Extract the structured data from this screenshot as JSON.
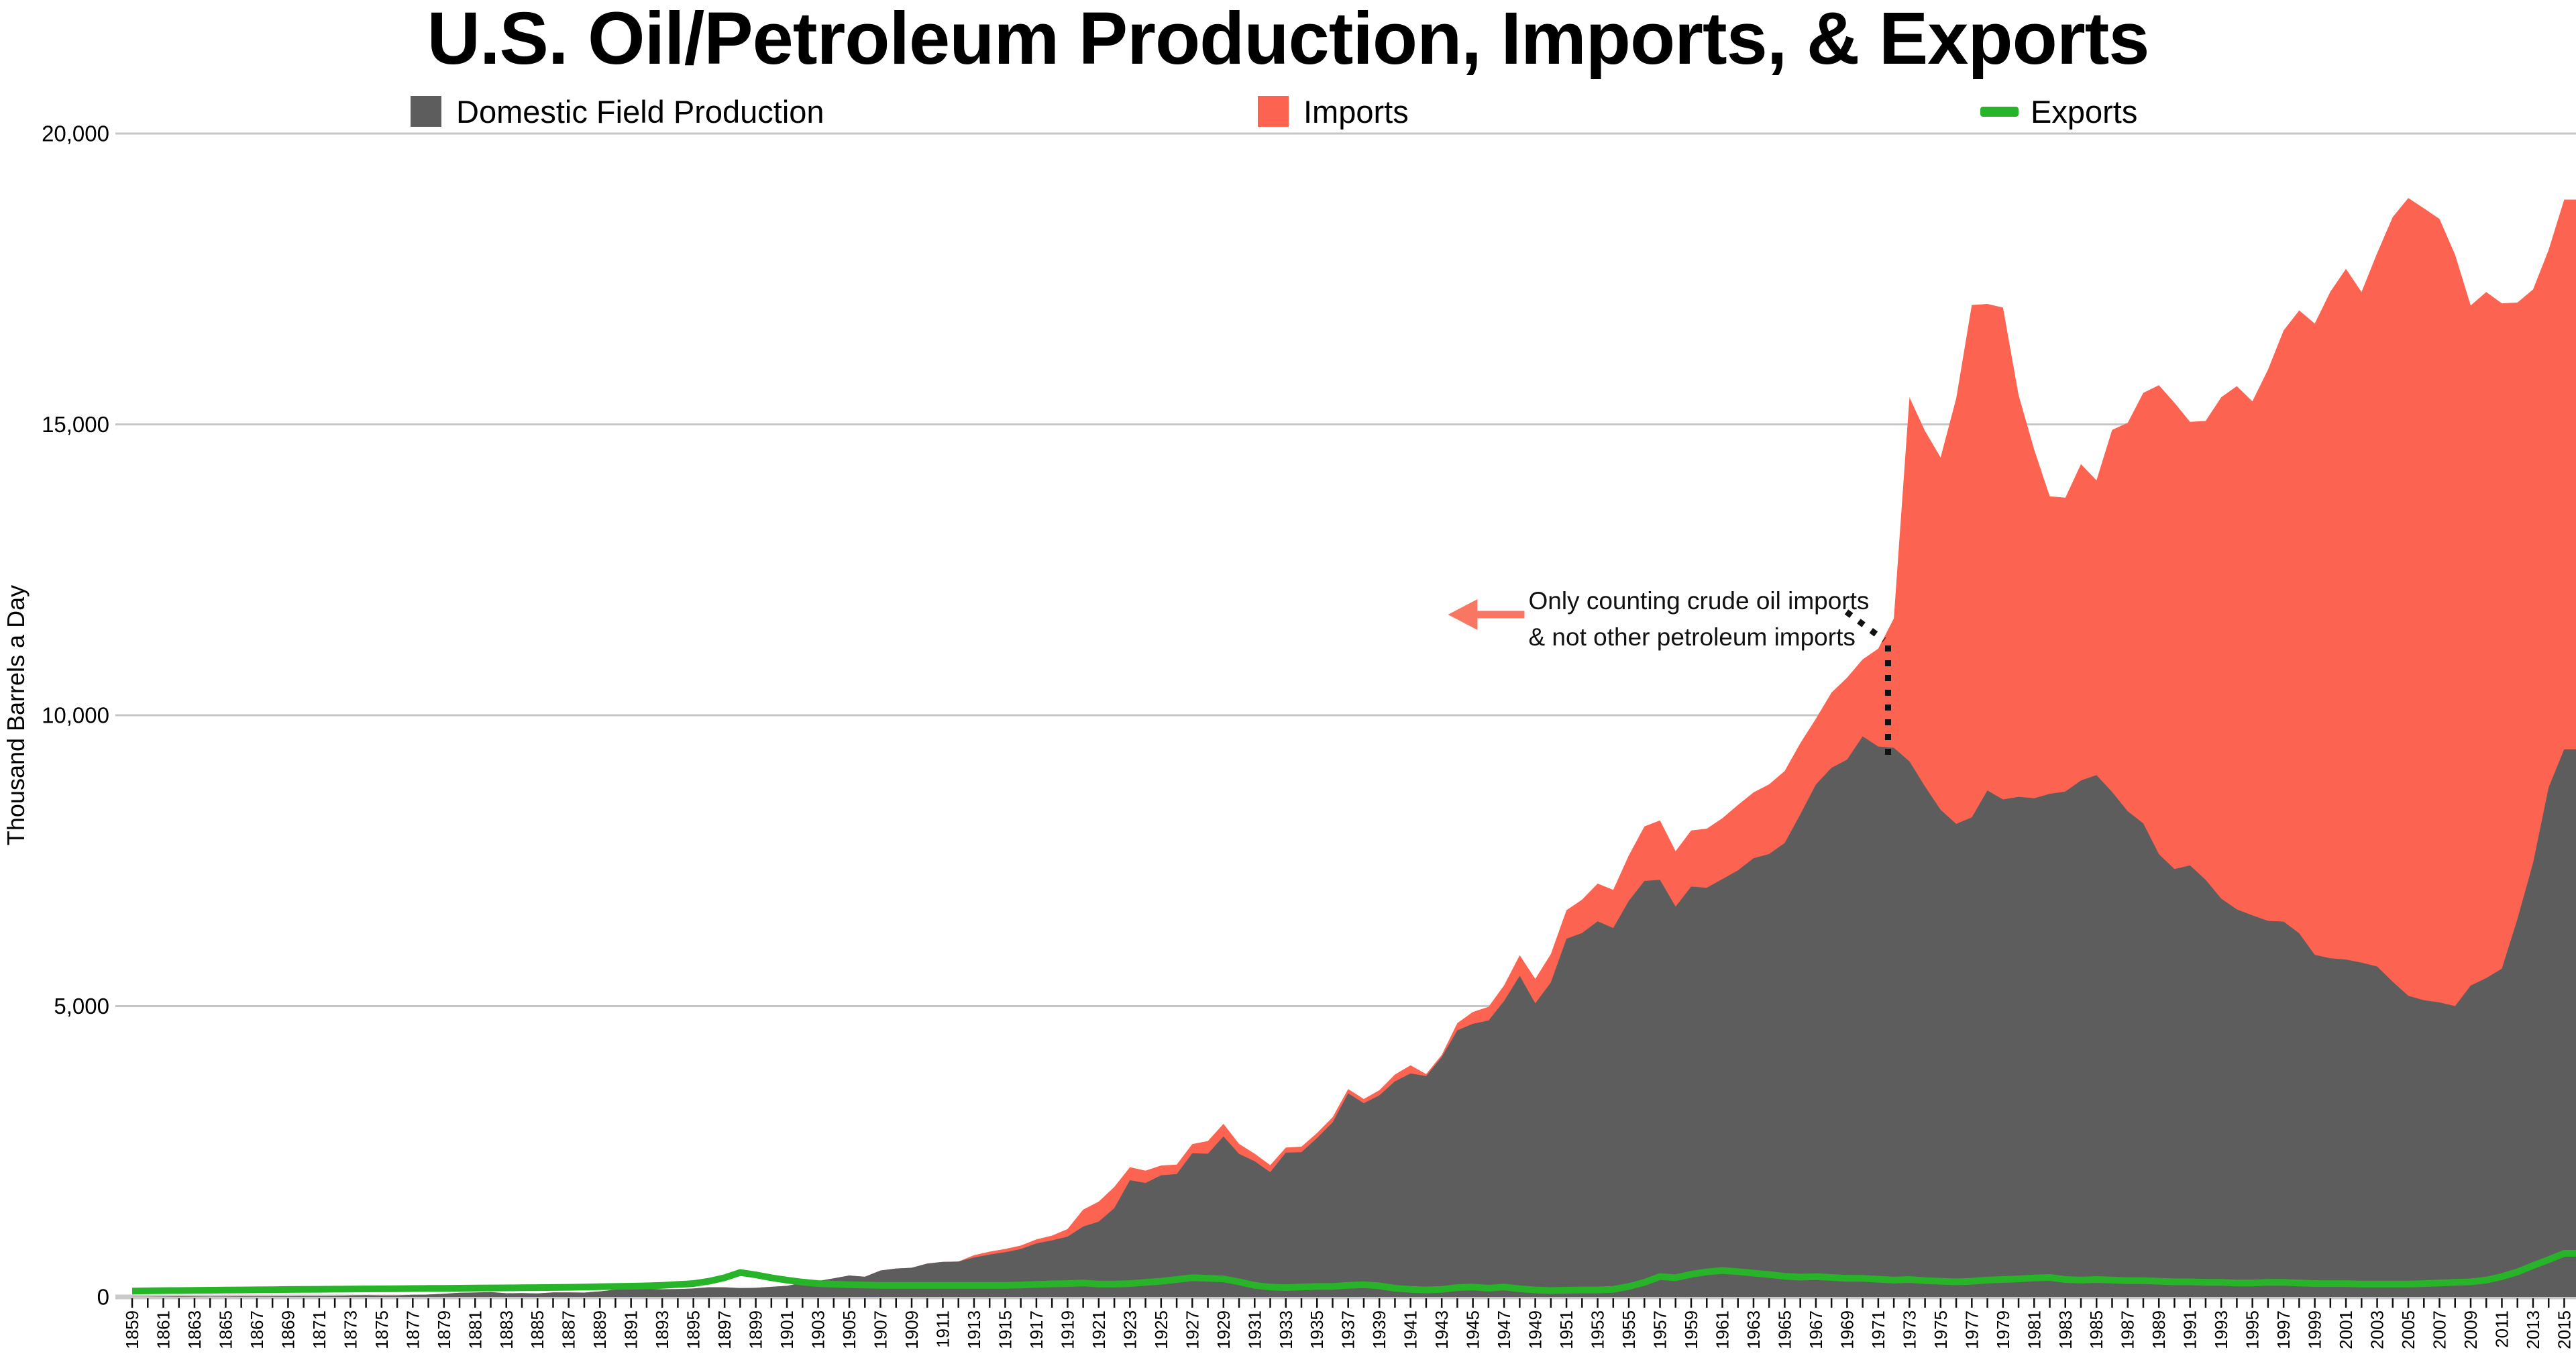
{
  "chart_data": {
    "type": "area",
    "title": "U.S. Oil/Petroleum Production, Imports, & Exports",
    "ylabel": "Thousand Barrels a Day",
    "ylim": [
      0,
      20000
    ],
    "y_tick_labels": [
      "0",
      "5,000",
      "10,000",
      "15,000",
      "20,000"
    ],
    "y_tick_values": [
      0,
      5000,
      10000,
      15000,
      20000
    ],
    "x_year_start": 1859,
    "x_year_end": 2015,
    "x_tick_labels": [
      1859,
      1861,
      1863,
      1865,
      1867,
      1869,
      1871,
      1873,
      1875,
      1877,
      1879,
      1881,
      1883,
      1885,
      1887,
      1889,
      1891,
      1893,
      1895,
      1897,
      1899,
      1901,
      1903,
      1905,
      1907,
      1909,
      1911,
      1913,
      1915,
      1917,
      1919,
      1921,
      1923,
      1925,
      1927,
      1929,
      1931,
      1933,
      1935,
      1937,
      1939,
      1941,
      1943,
      1945,
      1947,
      1949,
      1951,
      1953,
      1955,
      1957,
      1959,
      1961,
      1963,
      1965,
      1967,
      1969,
      1971,
      1973,
      1975,
      1977,
      1979,
      1981,
      1983,
      1985,
      1987,
      1989,
      1991,
      1993,
      1995,
      1997,
      1999,
      2001,
      2003,
      2005,
      2007,
      2009,
      2011,
      2013,
      2015
    ],
    "stacked": true,
    "grid": "horizontal",
    "legend_position": "top",
    "background": "#ffffff",
    "gridline_color": "#c6c6c6",
    "axis_line_color": "#c9c9c9",
    "series": [
      {
        "name": "Domestic Field Production",
        "type": "area",
        "color": "#5D5D5D",
        "values": [
          1,
          1,
          6,
          8,
          7,
          6,
          7,
          10,
          9,
          10,
          12,
          14,
          14,
          17,
          27,
          30,
          24,
          25,
          37,
          42,
          54,
          72,
          76,
          83,
          64,
          66,
          60,
          77,
          77,
          75,
          96,
          126,
          149,
          138,
          133,
          135,
          145,
          167,
          166,
          152,
          157,
          174,
          190,
          243,
          275,
          320,
          369,
          347,
          455,
          489,
          502,
          574,
          603,
          609,
          678,
          728,
          770,
          823,
          919,
          974,
          1037,
          1210,
          1294,
          1527,
          2007,
          1960,
          2092,
          2112,
          2469,
          2463,
          2760,
          2460,
          2332,
          2145,
          2481,
          2488,
          2730,
          3001,
          3500,
          3330,
          3466,
          3707,
          3842,
          3796,
          4125,
          4584,
          4695,
          4751,
          5088,
          5520,
          5046,
          5407,
          6158,
          6256,
          6458,
          6342,
          6807,
          7151,
          7170,
          6710,
          7054,
          7035,
          7183,
          7332,
          7542,
          7614,
          7804,
          8295,
          8810,
          9096,
          9238,
          9637,
          9463,
          9441,
          9208,
          8774,
          8375,
          8132,
          8245,
          8707,
          8552,
          8597,
          8572,
          8649,
          8688,
          8879,
          8971,
          8680,
          8349,
          8140,
          7613,
          7355,
          7417,
          7171,
          6847,
          6662,
          6560,
          6465,
          6452,
          6252,
          5881,
          5822,
          5801,
          5746,
          5681,
          5419,
          5178,
          5102,
          5064,
          5000,
          5353,
          5482,
          5645,
          6497,
          7461,
          8759,
          9415
        ]
      },
      {
        "name": "Imports",
        "type": "area",
        "color": "#FC6351",
        "stacked_on": "Domestic Field Production",
        "values": [
          0,
          0,
          0,
          0,
          0,
          0,
          0,
          0,
          0,
          0,
          0,
          0,
          0,
          0,
          0,
          0,
          0,
          0,
          0,
          0,
          0,
          0,
          0,
          0,
          0,
          0,
          0,
          0,
          0,
          0,
          0,
          0,
          0,
          0,
          0,
          0,
          0,
          0,
          0,
          0,
          0,
          0,
          0,
          0,
          0,
          0,
          0,
          0,
          0,
          0,
          0,
          0,
          0,
          0,
          40,
          50,
          55,
          60,
          70,
          80,
          130,
          291,
          345,
          365,
          224,
          211,
          168,
          164,
          160,
          218,
          216,
          171,
          130,
          122,
          87,
          96,
          88,
          89,
          74,
          72,
          88,
          117,
          139,
          35,
          37,
          123,
          203,
          236,
          268,
          353,
          421,
          487,
          490,
          573,
          648,
          656,
          782,
          937,
          1022,
          953,
          964,
          1015,
          1047,
          1126,
          1132,
          1198,
          1238,
          1225,
          1129,
          1293,
          1408,
          1324,
          1681,
          2222,
          6256,
          6112,
          6056,
          7313,
          8807,
          8363,
          8456,
          6909,
          5996,
          5113,
          5051,
          5437,
          5067,
          6224,
          6678,
          7402,
          8061,
          8018,
          7627,
          7888,
          8620,
          8996,
          8835,
          9478,
          10162,
          10708,
          10852,
          11459,
          11871,
          11530,
          12264,
          13145,
          13714,
          13612,
          13468,
          12915,
          11691,
          11793,
          11436,
          10598,
          9859,
          9241,
          9449
        ]
      },
      {
        "name": "Exports",
        "type": "line",
        "color": "#28B428",
        "values": [
          100,
          105,
          108,
          110,
          112,
          115,
          118,
          120,
          122,
          125,
          128,
          130,
          132,
          134,
          136,
          138,
          140,
          142,
          144,
          146,
          148,
          150,
          152,
          154,
          156,
          158,
          160,
          163,
          166,
          170,
          175,
          180,
          185,
          190,
          200,
          215,
          230,
          270,
          330,
          420,
          380,
          330,
          290,
          255,
          230,
          220,
          210,
          205,
          200,
          200,
          200,
          200,
          200,
          200,
          200,
          200,
          200,
          205,
          215,
          225,
          230,
          240,
          220,
          220,
          230,
          250,
          270,
          300,
          330,
          320,
          310,
          260,
          200,
          170,
          160,
          170,
          180,
          180,
          200,
          210,
          190,
          150,
          130,
          120,
          130,
          160,
          170,
          150,
          170,
          140,
          120,
          110,
          115,
          120,
          120,
          130,
          180,
          250,
          350,
          330,
          390,
          430,
          455,
          435,
          410,
          385,
          355,
          340,
          350,
          335,
          320,
          320,
          305,
          290,
          300,
          280,
          270,
          260,
          270,
          290,
          300,
          310,
          325,
          335,
          300,
          290,
          300,
          290,
          280,
          280,
          270,
          260,
          260,
          250,
          250,
          240,
          240,
          250,
          250,
          240,
          230,
          230,
          230,
          220,
          220,
          220,
          220,
          230,
          240,
          250,
          260,
          290,
          350,
          430,
          540,
          640,
          750
        ]
      }
    ],
    "annotation": {
      "line1": "Only counting crude oil imports",
      "line2": "& not other petroleum  imports",
      "x_year": 1971.8,
      "dotted_bottom_value": 9300,
      "arrow_color": "#F97762",
      "dotted_color": "#111111"
    }
  }
}
